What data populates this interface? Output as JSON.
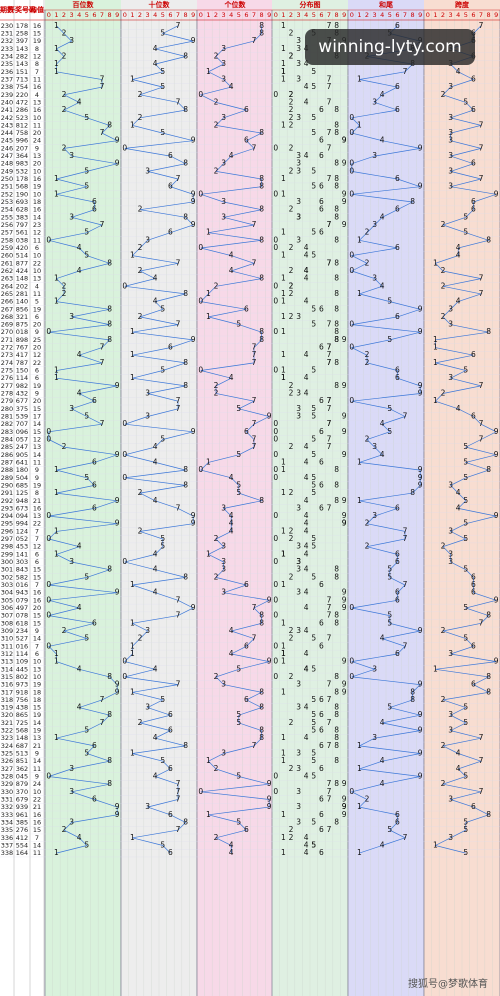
{
  "header": {
    "issue": "期数",
    "draw": "开奖号码",
    "sum": "和值"
  },
  "sections": [
    "百位数",
    "十位数",
    "个位数",
    "分布图",
    "和尾",
    "跨度"
  ],
  "digits": [
    0,
    1,
    2,
    3,
    4,
    5,
    6,
    7,
    8,
    9
  ],
  "rows": [
    [
      230,
      "178",
      16,
      1,
      7,
      8,
      6,
      7
    ],
    [
      231,
      "258",
      15,
      2,
      5,
      8,
      5,
      6
    ],
    [
      232,
      "397",
      19,
      3,
      9,
      7,
      9,
      6
    ],
    [
      233,
      "143",
      8,
      1,
      4,
      3,
      8,
      3
    ],
    [
      234,
      "282",
      12,
      2,
      8,
      2,
      2,
      6
    ],
    [
      235,
      "143",
      8,
      1,
      4,
      3,
      8,
      3
    ],
    [
      236,
      "151",
      7,
      1,
      5,
      1,
      7,
      4
    ],
    [
      237,
      "713",
      11,
      7,
      1,
      3,
      1,
      6
    ],
    [
      238,
      "754",
      16,
      7,
      5,
      4,
      6,
      3
    ],
    [
      239,
      "220",
      4,
      2,
      2,
      0,
      4,
      2
    ],
    [
      240,
      "472",
      13,
      4,
      7,
      2,
      3,
      5
    ],
    [
      241,
      "286",
      16,
      2,
      8,
      6,
      6,
      6
    ],
    [
      242,
      "523",
      10,
      5,
      2,
      3,
      0,
      3
    ],
    [
      243,
      "812",
      11,
      8,
      1,
      2,
      1,
      7
    ],
    [
      244,
      "758",
      20,
      7,
      5,
      8,
      0,
      3
    ],
    [
      245,
      "996",
      24,
      9,
      9,
      6,
      4,
      3
    ],
    [
      246,
      "207",
      9,
      2,
      0,
      7,
      9,
      7
    ],
    [
      247,
      "364",
      13,
      3,
      6,
      4,
      3,
      3
    ],
    [
      248,
      "983",
      20,
      9,
      8,
      3,
      0,
      6
    ],
    [
      249,
      "532",
      10,
      5,
      3,
      2,
      0,
      3
    ],
    [
      250,
      "178",
      16,
      1,
      7,
      8,
      6,
      7
    ],
    [
      251,
      "568",
      19,
      5,
      6,
      8,
      9,
      3
    ],
    [
      252,
      "190",
      10,
      1,
      9,
      0,
      0,
      9
    ],
    [
      253,
      "693",
      18,
      6,
      9,
      3,
      8,
      6
    ],
    [
      254,
      "628",
      16,
      6,
      2,
      8,
      6,
      6
    ],
    [
      255,
      "383",
      14,
      3,
      8,
      3,
      4,
      5
    ],
    [
      256,
      "797",
      23,
      7,
      9,
      7,
      3,
      2
    ],
    [
      257,
      "561",
      12,
      5,
      6,
      1,
      2,
      5
    ],
    [
      258,
      "038",
      11,
      0,
      3,
      8,
      1,
      8
    ],
    [
      259,
      "420",
      6,
      4,
      2,
      0,
      6,
      4
    ],
    [
      260,
      "514",
      10,
      5,
      1,
      4,
      0,
      4
    ],
    [
      261,
      "877",
      22,
      8,
      7,
      7,
      2,
      1
    ],
    [
      262,
      "424",
      10,
      4,
      2,
      4,
      0,
      2
    ],
    [
      263,
      "148",
      13,
      1,
      4,
      8,
      3,
      7
    ],
    [
      264,
      "202",
      4,
      2,
      0,
      2,
      4,
      2
    ],
    [
      265,
      "281",
      11,
      2,
      8,
      1,
      1,
      7
    ],
    [
      266,
      "140",
      5,
      1,
      4,
      0,
      5,
      4
    ],
    [
      267,
      "856",
      19,
      8,
      5,
      6,
      9,
      3
    ],
    [
      268,
      "321",
      6,
      3,
      2,
      1,
      6,
      2
    ],
    [
      269,
      "875",
      20,
      8,
      7,
      5,
      0,
      3
    ],
    [
      270,
      "018",
      9,
      0,
      1,
      8,
      9,
      8
    ],
    [
      271,
      "898",
      25,
      8,
      9,
      8,
      5,
      1
    ],
    [
      272,
      "767",
      20,
      7,
      6,
      7,
      0,
      1
    ],
    [
      273,
      "417",
      12,
      4,
      1,
      7,
      2,
      6
    ],
    [
      274,
      "787",
      22,
      7,
      8,
      7,
      2,
      1
    ],
    [
      275,
      "150",
      6,
      1,
      5,
      0,
      6,
      5
    ],
    [
      276,
      "114",
      6,
      1,
      1,
      4,
      6,
      3
    ],
    [
      277,
      "982",
      19,
      9,
      8,
      2,
      9,
      7
    ],
    [
      278,
      "432",
      9,
      4,
      3,
      2,
      9,
      2
    ],
    [
      279,
      "677",
      20,
      6,
      7,
      7,
      0,
      1
    ],
    [
      280,
      "375",
      15,
      3,
      7,
      5,
      5,
      4
    ],
    [
      281,
      "539",
      17,
      5,
      3,
      9,
      7,
      6
    ],
    [
      282,
      "707",
      14,
      7,
      0,
      7,
      4,
      7
    ],
    [
      283,
      "096",
      15,
      0,
      9,
      6,
      5,
      9
    ],
    [
      284,
      "057",
      12,
      0,
      5,
      7,
      2,
      7
    ],
    [
      285,
      "247",
      13,
      2,
      4,
      7,
      3,
      5
    ],
    [
      286,
      "905",
      14,
      9,
      0,
      5,
      4,
      9
    ],
    [
      287,
      "641",
      11,
      6,
      4,
      1,
      1,
      5
    ],
    [
      288,
      "180",
      9,
      1,
      8,
      0,
      9,
      8
    ],
    [
      289,
      "504",
      9,
      5,
      0,
      4,
      9,
      5
    ],
    [
      290,
      "685",
      19,
      6,
      8,
      5,
      9,
      3
    ],
    [
      291,
      "125",
      8,
      1,
      2,
      5,
      8,
      4
    ],
    [
      292,
      "948",
      21,
      9,
      4,
      8,
      1,
      5
    ],
    [
      293,
      "673",
      16,
      6,
      7,
      3,
      6,
      4
    ],
    [
      294,
      "094",
      13,
      0,
      9,
      4,
      3,
      9
    ],
    [
      295,
      "994",
      22,
      9,
      9,
      4,
      2,
      5
    ],
    [
      296,
      "124",
      7,
      1,
      2,
      4,
      7,
      3
    ],
    [
      297,
      "052",
      7,
      0,
      5,
      2,
      7,
      5
    ],
    [
      298,
      "453",
      12,
      4,
      5,
      3,
      2,
      2
    ],
    [
      299,
      "141",
      6,
      1,
      4,
      1,
      6,
      3
    ],
    [
      300,
      "303",
      6,
      3,
      0,
      3,
      6,
      3
    ],
    [
      301,
      "843",
      15,
      8,
      4,
      3,
      5,
      5
    ],
    [
      302,
      "582",
      15,
      5,
      8,
      2,
      5,
      6
    ],
    [
      303,
      "016",
      7,
      0,
      1,
      6,
      7,
      6
    ],
    [
      304,
      "943",
      16,
      9,
      4,
      3,
      6,
      6
    ],
    [
      305,
      "079",
      16,
      0,
      7,
      9,
      6,
      9
    ],
    [
      306,
      "497",
      20,
      4,
      9,
      7,
      0,
      5
    ],
    [
      307,
      "078",
      15,
      0,
      7,
      8,
      5,
      8
    ],
    [
      308,
      "618",
      15,
      6,
      1,
      8,
      5,
      7
    ],
    [
      309,
      "234",
      9,
      2,
      3,
      4,
      9,
      2
    ],
    [
      310,
      "527",
      14,
      5,
      2,
      7,
      4,
      5
    ],
    [
      311,
      "016",
      7,
      0,
      1,
      6,
      7,
      6
    ],
    [
      312,
      "114",
      6,
      1,
      1,
      4,
      6,
      3
    ],
    [
      313,
      "109",
      10,
      1,
      0,
      9,
      0,
      9
    ],
    [
      314,
      "445",
      13,
      4,
      4,
      5,
      3,
      1
    ],
    [
      315,
      "802",
      10,
      8,
      0,
      2,
      0,
      8
    ],
    [
      316,
      "973",
      19,
      9,
      7,
      3,
      9,
      6
    ],
    [
      317,
      "918",
      18,
      9,
      1,
      8,
      8,
      8
    ],
    [
      318,
      "756",
      18,
      7,
      5,
      6,
      8,
      2
    ],
    [
      319,
      "438",
      15,
      4,
      3,
      8,
      5,
      5
    ],
    [
      320,
      "865",
      19,
      8,
      6,
      5,
      9,
      3
    ],
    [
      321,
      "725",
      14,
      7,
      2,
      5,
      4,
      5
    ],
    [
      322,
      "568",
      19,
      5,
      6,
      8,
      9,
      3
    ],
    [
      323,
      "148",
      13,
      1,
      4,
      8,
      3,
      7
    ],
    [
      324,
      "687",
      21,
      6,
      8,
      7,
      1,
      2
    ],
    [
      325,
      "513",
      9,
      5,
      1,
      3,
      9,
      4
    ],
    [
      326,
      "851",
      14,
      8,
      5,
      1,
      4,
      7
    ],
    [
      327,
      "362",
      11,
      3,
      6,
      2,
      1,
      4
    ],
    [
      328,
      "045",
      9,
      0,
      4,
      5,
      9,
      5
    ],
    [
      329,
      "879",
      24,
      8,
      7,
      9,
      4,
      2
    ],
    [
      330,
      "370",
      10,
      3,
      7,
      0,
      0,
      7
    ],
    [
      331,
      "679",
      22,
      6,
      7,
      9,
      2,
      3
    ],
    [
      332,
      "939",
      21,
      9,
      3,
      9,
      1,
      6
    ],
    [
      333,
      "961",
      16,
      9,
      6,
      1,
      6,
      8
    ],
    [
      334,
      "385",
      16,
      3,
      8,
      5,
      6,
      5
    ],
    [
      335,
      "276",
      15,
      2,
      7,
      6,
      5,
      5
    ],
    [
      336,
      "412",
      7,
      4,
      1,
      2,
      7,
      3
    ],
    [
      337,
      "554",
      14,
      5,
      5,
      4,
      4,
      1
    ],
    [
      338,
      "164",
      11,
      1,
      6,
      4,
      1,
      5
    ]
  ],
  "watermark": "winning-lyty.com",
  "footer": "搜狐号@梦歌体育"
}
